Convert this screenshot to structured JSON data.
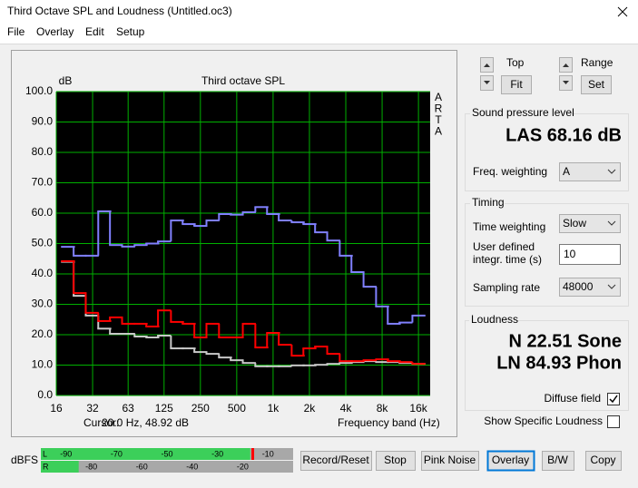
{
  "window": {
    "title": "Third Octave SPL and Loudness (Untitled.oc3)",
    "menu": [
      "File",
      "Overlay",
      "Edit",
      "Setup"
    ]
  },
  "chart_data": {
    "type": "step",
    "title": "Third octave SPL",
    "y_unit": "dB",
    "side_label": [
      "A",
      "R",
      "T",
      "A"
    ],
    "xlabel": "Frequency band (Hz)",
    "cursor_label": "Cursor:",
    "cursor_value": "20.0 Hz, 48.92 dB",
    "x": [
      20,
      25,
      31.5,
      40,
      50,
      63,
      80,
      100,
      125,
      160,
      200,
      250,
      315,
      400,
      500,
      630,
      800,
      1000,
      1250,
      1600,
      2000,
      2500,
      3150,
      4000,
      5000,
      6300,
      8000,
      10000,
      12500,
      16000
    ],
    "xscale": "log",
    "xlim": [
      16,
      20000
    ],
    "xticks": [
      16,
      32,
      63,
      125,
      250,
      500,
      {
        "value": 1000,
        "label": "1k"
      },
      {
        "value": 2000,
        "label": "2k"
      },
      {
        "value": 4000,
        "label": "4k"
      },
      {
        "value": 8000,
        "label": "8k"
      },
      {
        "value": 16000,
        "label": "16k"
      }
    ],
    "ylim": [
      0,
      100
    ],
    "yticks": [
      {
        "value": 0,
        "label": "0.0"
      },
      {
        "value": 10,
        "label": "10.0"
      },
      {
        "value": 20,
        "label": "20.0"
      },
      {
        "value": 30,
        "label": "30.0"
      },
      {
        "value": 40,
        "label": "40.0"
      },
      {
        "value": 50,
        "label": "50.0"
      },
      {
        "value": 60,
        "label": "60.0"
      },
      {
        "value": 70,
        "label": "70.0"
      },
      {
        "value": 80,
        "label": "80.0"
      },
      {
        "value": 90,
        "label": "90.0"
      },
      {
        "value": 100,
        "label": "100.0"
      }
    ],
    "grid": true,
    "grid_color": "#00b000",
    "background": "#000000",
    "series": [
      {
        "color": "#8080ff",
        "values": [
          48.92,
          46,
          46,
          60.6,
          49.5,
          49,
          49.5,
          50,
          50.7,
          57.6,
          56.4,
          55.8,
          57.6,
          59.7,
          59.5,
          60.3,
          62,
          59.7,
          57.6,
          57,
          56.4,
          53.7,
          51,
          46,
          40.6,
          35.8,
          29.3,
          23.6,
          24,
          26.3
        ]
      },
      {
        "color": "#c8c8c8",
        "values": [
          44,
          32.8,
          26.3,
          22,
          20.3,
          20.3,
          19.4,
          19.1,
          19.7,
          15.5,
          15.5,
          14.3,
          13.7,
          12.5,
          11.6,
          10.7,
          9.6,
          9.6,
          9.6,
          9.9,
          9.9,
          10.1,
          10.4,
          10.7,
          11,
          11.3,
          11,
          11,
          10.7,
          10.4
        ]
      },
      {
        "color": "#ff0000",
        "values": [
          44.2,
          33.7,
          27.2,
          24.5,
          25.7,
          23.6,
          23.6,
          22.7,
          28,
          24.2,
          23.6,
          19.1,
          23.6,
          19.1,
          19.1,
          23.6,
          15.8,
          20.6,
          16.7,
          13.1,
          15.5,
          16.1,
          13.7,
          11.3,
          11.3,
          11.6,
          11.9,
          11.3,
          11,
          10.4
        ]
      }
    ]
  },
  "controls": {
    "top": "Top",
    "fit": "Fit",
    "range": "Range",
    "set": "Set",
    "spl": {
      "title": "Sound pressure level",
      "reading": "LAS 68.16 dB",
      "weighting_label": "Freq. weighting",
      "weighting": "A"
    },
    "timing": {
      "title": "Timing",
      "time_weighting_label": "Time weighting",
      "time_weighting": "Slow",
      "integr_label_1": "User defined",
      "integr_label_2": "integr. time (s)",
      "integr_time": "10",
      "sampling_label": "Sampling rate",
      "sampling_rate": "48000"
    },
    "loudness": {
      "title": "Loudness",
      "n": "N 22.51 Sone",
      "ln": "LN 84.93 Phon",
      "diffuse": "Diffuse field",
      "specific": "Show Specific Loudness"
    },
    "buttons": [
      "Record/Reset",
      "Stop",
      "Pink Noise",
      "Overlay",
      "B/W",
      "Copy"
    ]
  },
  "level_meter": {
    "unit": "dBFS",
    "range": [
      -100,
      0
    ],
    "channels": [
      {
        "name": "L",
        "level": -17,
        "peak": -16,
        "scale": [
          -90,
          -70,
          -50,
          -30,
          -10
        ]
      },
      {
        "name": "R",
        "level": -85,
        "scale": [
          -80,
          -60,
          -40,
          -20
        ]
      }
    ]
  }
}
